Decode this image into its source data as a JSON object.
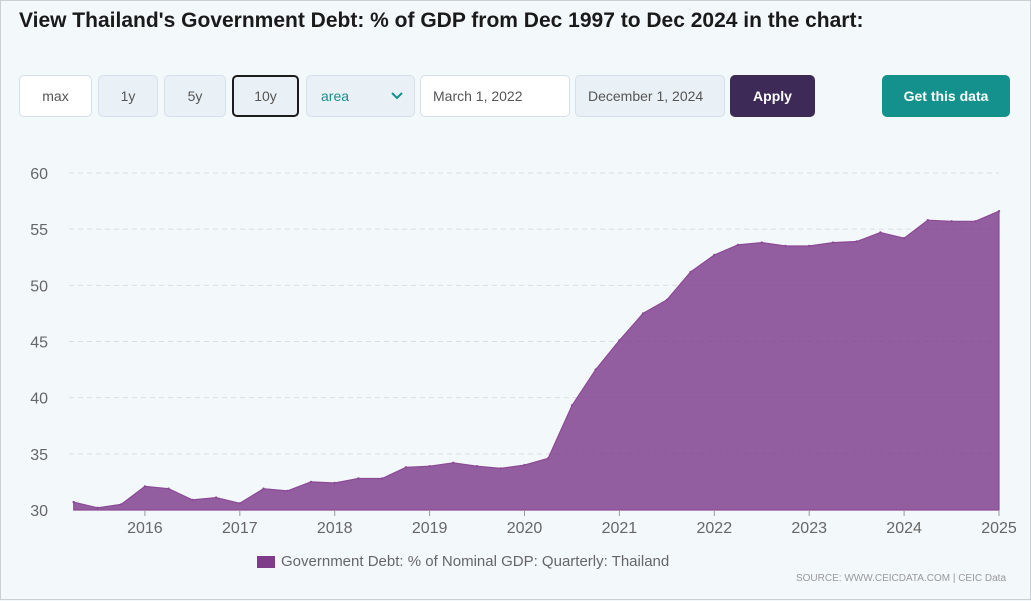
{
  "title": "View Thailand's Government Debt: % of GDP from Dec 1997 to Dec 2024 in the chart:",
  "controls": {
    "range_buttons": [
      "max",
      "1y",
      "5y",
      "10y"
    ],
    "active_range": "10y",
    "chart_type": "area",
    "date_from": "March 1, 2022",
    "date_to": "December 1, 2024",
    "apply_label": "Apply",
    "get_data_label": "Get this data"
  },
  "colors": {
    "area_fill": "#7e3c8a",
    "apply_bg": "#3d2a57",
    "get_data_bg": "#14918c",
    "accent_text": "#15908a"
  },
  "source": "SOURCE: WWW.CEICDATA.COM | CEIC Data",
  "chart_data": {
    "type": "area",
    "title": "",
    "xlabel": "",
    "ylabel": "",
    "ylim": [
      30,
      60
    ],
    "xlim": [
      2015.2,
      2025.0
    ],
    "yticks": [
      30,
      35,
      40,
      45,
      50,
      55,
      60
    ],
    "xticks": [
      "2016",
      "2017",
      "2018",
      "2019",
      "2020",
      "2021",
      "2022",
      "2023",
      "2024",
      "2025"
    ],
    "grid": true,
    "legend_position": "bottom",
    "series": [
      {
        "name": "Government Debt: % of Nominal GDP: Quarterly: Thailand",
        "x": [
          2015.25,
          2015.5,
          2015.75,
          2016.0,
          2016.25,
          2016.5,
          2016.75,
          2017.0,
          2017.25,
          2017.5,
          2017.75,
          2018.0,
          2018.25,
          2018.5,
          2018.75,
          2019.0,
          2019.25,
          2019.5,
          2019.75,
          2020.0,
          2020.25,
          2020.5,
          2020.75,
          2021.0,
          2021.25,
          2021.5,
          2021.75,
          2022.0,
          2022.25,
          2022.5,
          2022.75,
          2023.0,
          2023.25,
          2023.5,
          2023.75,
          2024.0,
          2024.25,
          2024.5,
          2024.75,
          2025.0
        ],
        "values": [
          30.7,
          30.2,
          30.5,
          32.1,
          31.9,
          30.9,
          31.1,
          30.6,
          31.9,
          31.7,
          32.5,
          32.4,
          32.8,
          32.8,
          33.8,
          33.9,
          34.2,
          33.9,
          33.7,
          34.0,
          34.6,
          39.3,
          42.5,
          45.1,
          47.5,
          48.7,
          51.2,
          52.7,
          53.6,
          53.8,
          53.5,
          53.5,
          53.8,
          53.9,
          54.7,
          54.2,
          55.8,
          55.7,
          55.7,
          56.6
        ]
      }
    ]
  }
}
